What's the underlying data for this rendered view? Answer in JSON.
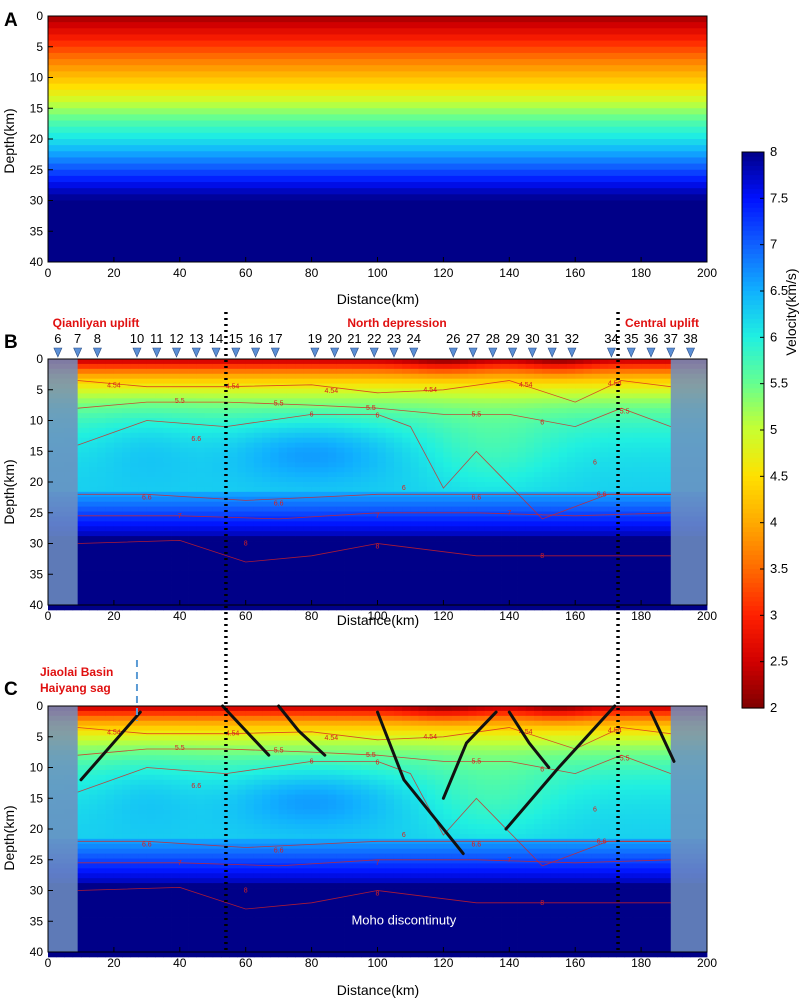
{
  "chart_data": [
    {
      "panel": "A",
      "type": "heatmap",
      "description_kind": "1D starting velocity model (depth-only layering)",
      "xlabel": "Distance(km)",
      "ylabel": "Depth(km)",
      "xlim": [
        0,
        200
      ],
      "ylim": [
        0,
        40
      ],
      "x_ticks": [
        "0",
        "20",
        "40",
        "60",
        "80",
        "100",
        "120",
        "140",
        "160",
        "180",
        "200"
      ],
      "y_ticks": [
        "0",
        "5",
        "10",
        "15",
        "20",
        "25",
        "30",
        "35",
        "40"
      ],
      "velocity_by_depth": [
        {
          "depth": 0,
          "velocity": 2.2
        },
        {
          "depth": 2,
          "velocity": 2.6
        },
        {
          "depth": 4,
          "velocity": 3.0
        },
        {
          "depth": 6,
          "velocity": 3.4
        },
        {
          "depth": 8,
          "velocity": 3.8
        },
        {
          "depth": 10,
          "velocity": 4.2
        },
        {
          "depth": 12,
          "velocity": 4.6
        },
        {
          "depth": 14,
          "velocity": 5.0
        },
        {
          "depth": 16,
          "velocity": 5.4
        },
        {
          "depth": 18,
          "velocity": 5.8
        },
        {
          "depth": 20,
          "velocity": 6.1
        },
        {
          "depth": 22,
          "velocity": 6.5
        },
        {
          "depth": 24,
          "velocity": 6.9
        },
        {
          "depth": 26,
          "velocity": 7.3
        },
        {
          "depth": 28,
          "velocity": 7.7
        },
        {
          "depth": 30,
          "velocity": 8.0
        },
        {
          "depth": 40,
          "velocity": 8.0
        }
      ]
    },
    {
      "panel": "B",
      "type": "heatmap",
      "xlabel": "Distance(km)",
      "ylabel": "Depth(km)",
      "xlim": [
        0,
        200
      ],
      "ylim": [
        0,
        40
      ],
      "x_ticks": [
        "0",
        "20",
        "40",
        "60",
        "80",
        "100",
        "120",
        "140",
        "160",
        "180",
        "200"
      ],
      "y_ticks": [
        "0",
        "5",
        "10",
        "15",
        "20",
        "25",
        "30",
        "35",
        "40"
      ],
      "region_labels": [
        {
          "text": "Qianliyan uplift",
          "x": 20
        },
        {
          "text": "North depression",
          "x": 113
        },
        {
          "text": "Central uplift",
          "x": 190
        }
      ],
      "boundaries_km": [
        54,
        173
      ],
      "stations": [
        {
          "id": "6",
          "x": 3
        },
        {
          "id": "7",
          "x": 9
        },
        {
          "id": "8",
          "x": 15
        },
        {
          "id": "10",
          "x": 27
        },
        {
          "id": "11",
          "x": 33
        },
        {
          "id": "12",
          "x": 39
        },
        {
          "id": "13",
          "x": 45
        },
        {
          "id": "14",
          "x": 51
        },
        {
          "id": "15",
          "x": 57
        },
        {
          "id": "16",
          "x": 63
        },
        {
          "id": "17",
          "x": 69
        },
        {
          "id": "19",
          "x": 81
        },
        {
          "id": "20",
          "x": 87
        },
        {
          "id": "21",
          "x": 93
        },
        {
          "id": "22",
          "x": 99
        },
        {
          "id": "23",
          "x": 105
        },
        {
          "id": "24",
          "x": 111
        },
        {
          "id": "26",
          "x": 123
        },
        {
          "id": "27",
          "x": 129
        },
        {
          "id": "28",
          "x": 135
        },
        {
          "id": "29",
          "x": 141
        },
        {
          "id": "30",
          "x": 147
        },
        {
          "id": "31",
          "x": 153
        },
        {
          "id": "32",
          "x": 159
        },
        {
          "id": "34",
          "x": 171
        },
        {
          "id": "35",
          "x": 177
        },
        {
          "id": "36",
          "x": 183
        },
        {
          "id": "37",
          "x": 189
        },
        {
          "id": "38",
          "x": 195
        }
      ],
      "masked_ranges_km": [
        [
          0,
          9
        ],
        [
          189,
          200
        ]
      ],
      "contours": [
        {
          "level": "4.54",
          "points": [
            [
              9,
              3.5
            ],
            [
              30,
              4.5
            ],
            [
              54,
              4.5
            ],
            [
              80,
              4.2
            ],
            [
              100,
              5.5
            ],
            [
              120,
              5.0
            ],
            [
              140,
              3.5
            ],
            [
              160,
              7.0
            ],
            [
              174,
              3.5
            ],
            [
              189,
              4.5
            ]
          ]
        },
        {
          "level": "5.5",
          "points": [
            [
              9,
              8
            ],
            [
              30,
              7
            ],
            [
              54,
              7
            ],
            [
              80,
              7.5
            ],
            [
              100,
              8
            ],
            [
              120,
              9
            ],
            [
              140,
              9
            ],
            [
              160,
              11
            ],
            [
              174,
              8
            ],
            [
              189,
              11
            ]
          ]
        },
        {
          "level": "6",
          "points": [
            [
              9,
              14
            ],
            [
              30,
              10
            ],
            [
              54,
              11
            ],
            [
              80,
              9
            ],
            [
              100,
              9
            ],
            [
              110,
              11
            ],
            [
              120,
              21
            ],
            [
              130,
              15
            ],
            [
              150,
              26
            ],
            [
              170,
              22
            ],
            [
              189,
              22
            ]
          ]
        },
        {
          "level": "6.6",
          "points": [
            [
              9,
              22
            ],
            [
              30,
              22
            ],
            [
              60,
              23
            ],
            [
              80,
              22.5
            ],
            [
              100,
              22
            ],
            [
              130,
              22
            ],
            [
              160,
              22
            ],
            [
              189,
              22
            ]
          ]
        },
        {
          "level": "7",
          "points": [
            [
              9,
              25.5
            ],
            [
              40,
              25.5
            ],
            [
              70,
              26
            ],
            [
              100,
              25
            ],
            [
              130,
              25
            ],
            [
              160,
              25.5
            ],
            [
              189,
              25
            ]
          ]
        },
        {
          "level": "8",
          "points": [
            [
              9,
              30
            ],
            [
              40,
              29.5
            ],
            [
              60,
              33
            ],
            [
              80,
              32
            ],
            [
              100,
              30
            ],
            [
              130,
              32
            ],
            [
              160,
              32
            ],
            [
              189,
              32
            ]
          ]
        }
      ],
      "contour_labels": [
        {
          "text": "4.54",
          "x": 20,
          "y": 4.3
        },
        {
          "text": "4.54",
          "x": 56,
          "y": 4.5
        },
        {
          "text": "4.54",
          "x": 86,
          "y": 5.2
        },
        {
          "text": "4.54",
          "x": 116,
          "y": 5.0
        },
        {
          "text": "4.54",
          "x": 145,
          "y": 4.2
        },
        {
          "text": "4.54",
          "x": 172,
          "y": 4.0
        },
        {
          "text": "5.5",
          "x": 40,
          "y": 6.8
        },
        {
          "text": "5.5",
          "x": 70,
          "y": 7.2
        },
        {
          "text": "5.5",
          "x": 98,
          "y": 8.0
        },
        {
          "text": "5.5",
          "x": 130,
          "y": 9.0
        },
        {
          "text": "5.5",
          "x": 175,
          "y": 8.5
        },
        {
          "text": "6",
          "x": 80,
          "y": 9.0
        },
        {
          "text": "6",
          "x": 100,
          "y": 9.2
        },
        {
          "text": "6",
          "x": 150,
          "y": 10.3
        },
        {
          "text": "6",
          "x": 166,
          "y": 16.8
        },
        {
          "text": "6",
          "x": 108,
          "y": 21.0
        },
        {
          "text": "6.6",
          "x": 45,
          "y": 13.0
        },
        {
          "text": "6.6",
          "x": 30,
          "y": 22.5
        },
        {
          "text": "6.6",
          "x": 70,
          "y": 23.5
        },
        {
          "text": "6.6",
          "x": 130,
          "y": 22.5
        },
        {
          "text": "6.6",
          "x": 168,
          "y": 22.0
        },
        {
          "text": "7",
          "x": 40,
          "y": 25.5
        },
        {
          "text": "7",
          "x": 100,
          "y": 25.5
        },
        {
          "text": "7",
          "x": 140,
          "y": 25.0
        },
        {
          "text": "8",
          "x": 60,
          "y": 30.0
        },
        {
          "text": "8",
          "x": 100,
          "y": 30.5
        },
        {
          "text": "8",
          "x": 150,
          "y": 32.0
        }
      ]
    },
    {
      "panel": "C",
      "type": "heatmap",
      "xlabel": "Distance(km)",
      "ylabel": "Depth(km)",
      "xlim": [
        0,
        200
      ],
      "ylim": [
        0,
        40
      ],
      "x_ticks": [
        "0",
        "20",
        "40",
        "60",
        "80",
        "100",
        "120",
        "140",
        "160",
        "180",
        "200"
      ],
      "y_ticks": [
        "0",
        "5",
        "10",
        "15",
        "20",
        "25",
        "30",
        "35",
        "40"
      ],
      "region_label_lines": [
        "Jiaolai Basin",
        "Haiyang sag"
      ],
      "sag_boundary_km": 27,
      "boundaries_km": [
        54,
        173
      ],
      "masked_ranges_km": [
        [
          0,
          9
        ],
        [
          189,
          200
        ]
      ],
      "moho_label": "Moho discontinuty",
      "faults": [
        [
          [
            10,
            12
          ],
          [
            28,
            1
          ]
        ],
        [
          [
            53,
            0
          ],
          [
            60,
            4
          ],
          [
            67,
            8
          ]
        ],
        [
          [
            70,
            0
          ],
          [
            76,
            4
          ],
          [
            84,
            8
          ]
        ],
        [
          [
            100,
            1
          ],
          [
            108,
            12
          ],
          [
            126,
            24
          ]
        ],
        [
          [
            120,
            15
          ],
          [
            127,
            6
          ],
          [
            136,
            1
          ]
        ],
        [
          [
            140,
            1
          ],
          [
            146,
            6
          ],
          [
            152,
            10
          ]
        ],
        [
          [
            139,
            20
          ],
          [
            155,
            10
          ],
          [
            172,
            0
          ]
        ],
        [
          [
            183,
            1
          ],
          [
            190,
            9
          ]
        ]
      ]
    }
  ],
  "colorbar": {
    "label": "Velocity(km/s)",
    "min": 2,
    "max": 8,
    "ticks": [
      "2",
      "2.5",
      "3",
      "3.5",
      "4",
      "4.5",
      "5",
      "5.5",
      "6",
      "6.5",
      "7",
      "7.5",
      "8"
    ],
    "colors": [
      "#7f0000",
      "#d10000",
      "#ff2000",
      "#ff6a00",
      "#ffaa00",
      "#ffe000",
      "#c8ff30",
      "#66ff90",
      "#20f0e0",
      "#10b0ff",
      "#1060ff",
      "#0010ff",
      "#000088"
    ]
  },
  "panel_letters": [
    "A",
    "B",
    "C"
  ]
}
